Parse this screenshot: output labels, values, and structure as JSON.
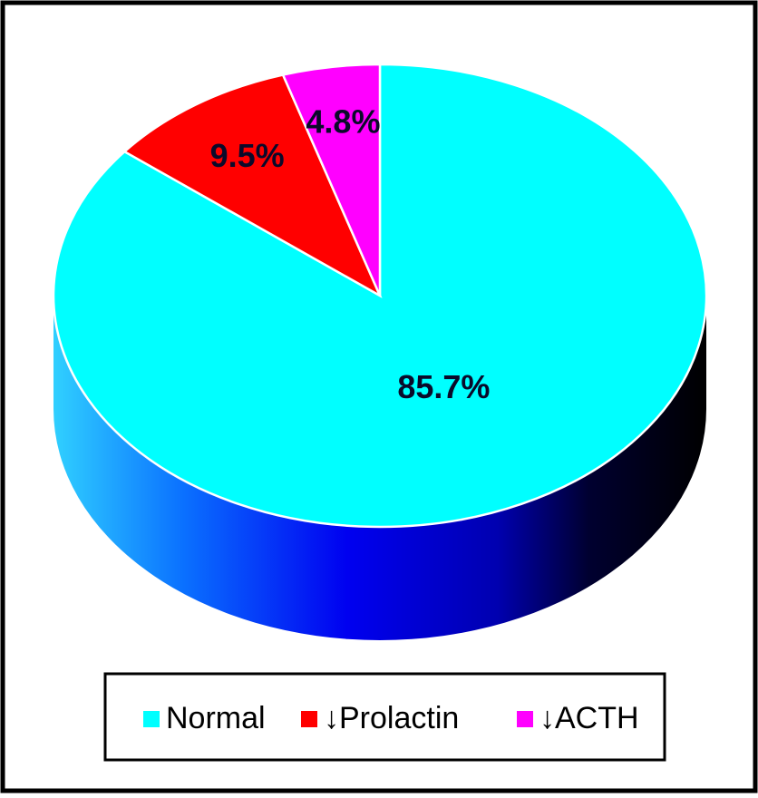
{
  "chart_data": {
    "type": "pie",
    "categories": [
      "Normal",
      "↓Prolactin",
      "↓ACTH"
    ],
    "values": [
      85.7,
      9.5,
      4.8
    ],
    "value_labels": [
      "85.7%",
      "9.5%",
      "4.8%"
    ],
    "colors": [
      "#00ffff",
      "#ff0000",
      "#ff00ff"
    ],
    "legend": "bottom"
  }
}
